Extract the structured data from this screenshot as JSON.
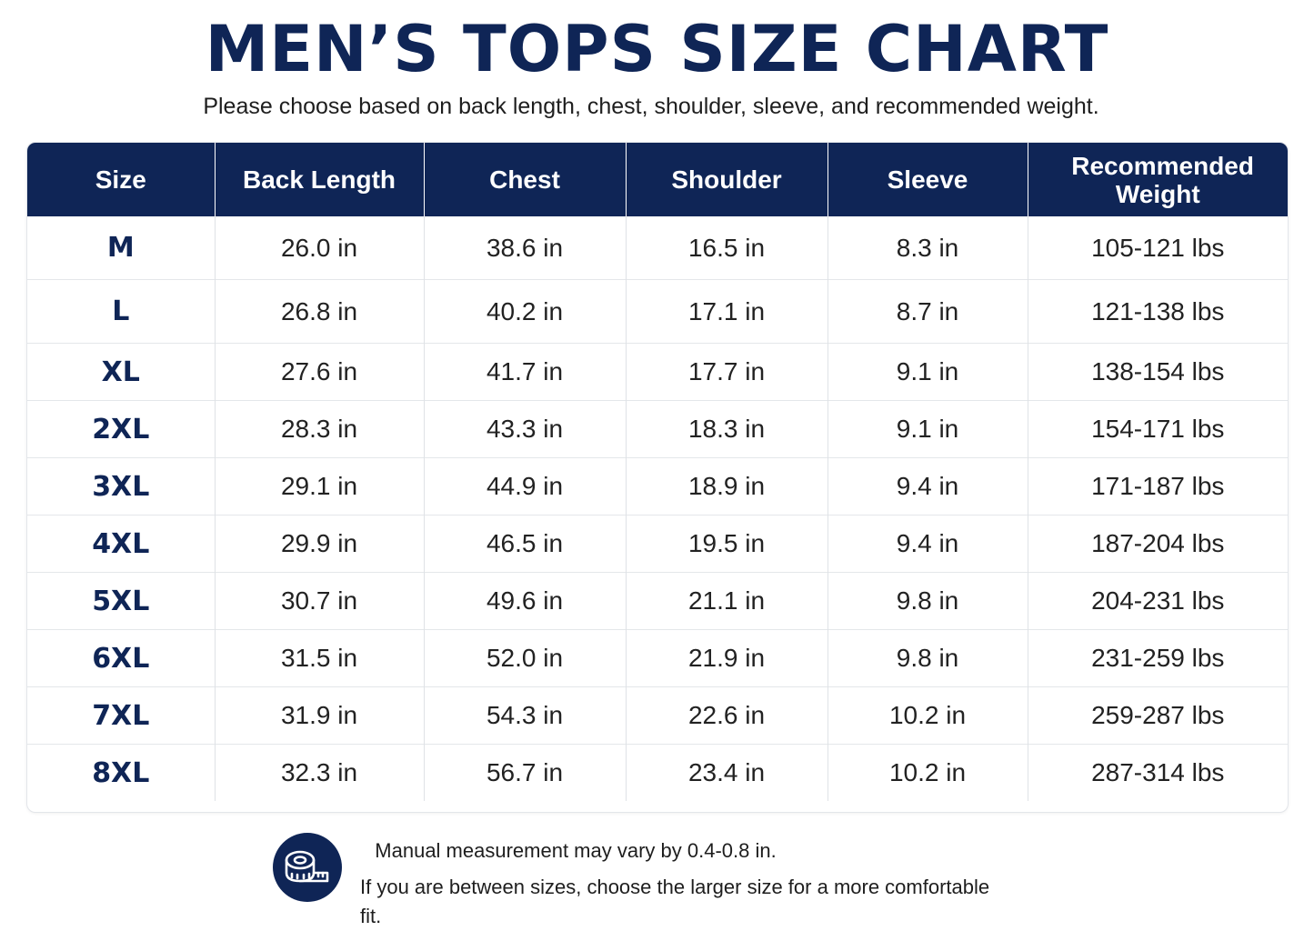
{
  "title": "MEN’S TOPS SIZE CHART",
  "subtitle": "Please choose based on back length, chest, shoulder, sleeve, and recommended weight.",
  "table": {
    "headers": [
      "Size",
      "Back Length",
      "Chest",
      "Shoulder",
      "Sleeve",
      "Recommended Weight"
    ],
    "rows": [
      [
        "M",
        "26.0 in",
        "38.6 in",
        "16.5 in",
        "8.3 in",
        "105-121 lbs"
      ],
      [
        "L",
        "26.8 in",
        "40.2 in",
        "17.1 in",
        "8.7 in",
        "121-138 lbs"
      ],
      [
        "XL",
        "27.6 in",
        "41.7 in",
        "17.7 in",
        "9.1 in",
        "138-154 lbs"
      ],
      [
        "2XL",
        "28.3 in",
        "43.3 in",
        "18.3 in",
        "9.1 in",
        "154-171 lbs"
      ],
      [
        "3XL",
        "29.1 in",
        "44.9 in",
        "18.9 in",
        "9.4 in",
        "171-187 lbs"
      ],
      [
        "4XL",
        "29.9 in",
        "46.5 in",
        "19.5 in",
        "9.4 in",
        "187-204 lbs"
      ],
      [
        "5XL",
        "30.7 in",
        "49.6 in",
        "21.1 in",
        "9.8 in",
        "204-231 lbs"
      ],
      [
        "6XL",
        "31.5 in",
        "52.0 in",
        "21.9 in",
        "9.8 in",
        "231-259 lbs"
      ],
      [
        "7XL",
        "31.9 in",
        "54.3 in",
        "22.6 in",
        "10.2 in",
        "259-287 lbs"
      ],
      [
        "8XL",
        "32.3 in",
        "56.7 in",
        "23.4 in",
        "10.2 in",
        "287-314 lbs"
      ]
    ]
  },
  "footer": {
    "icon": "measuring-tape-icon",
    "note_1": "Manual measurement may vary by 0.4-0.8 in.",
    "note_2": "If you are between sizes, choose the larger size for a more comfortable fit."
  },
  "colors": {
    "navy": "#0f2556",
    "text": "#1e1e1e",
    "grid": "#dfe2e6"
  }
}
